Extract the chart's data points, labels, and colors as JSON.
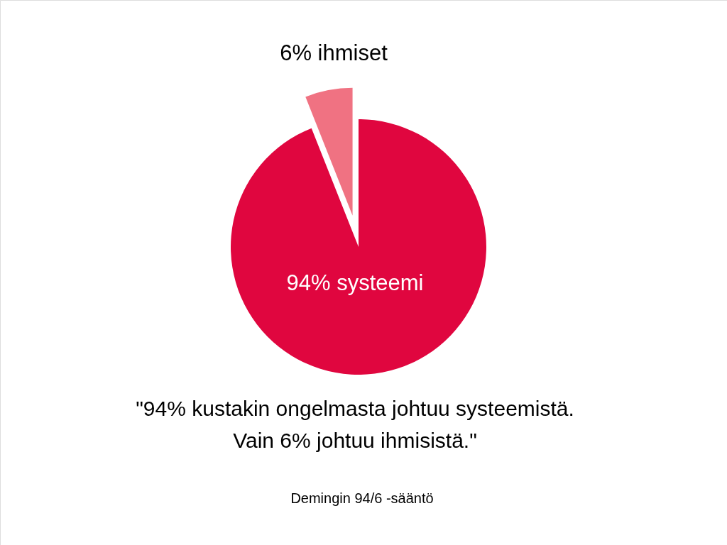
{
  "chart_data": {
    "type": "pie",
    "categories": [
      "94% systeemi",
      "6% ihmiset"
    ],
    "values": [
      94,
      6
    ],
    "colors": [
      "#e0063f",
      "#f07282"
    ],
    "annotations": [
      "\"94% kustakin ongelmasta johtuu systeemistä.",
      "Vain 6% johtuu ihmisistä.\"",
      "Demingin 94/6 -sääntö"
    ]
  }
}
